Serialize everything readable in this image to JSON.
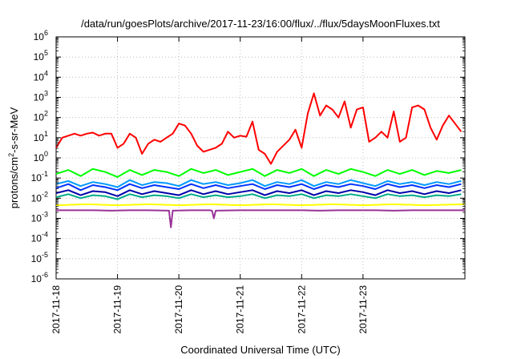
{
  "chart_data": {
    "type": "line",
    "title": "/data/run/goesPlots/archive/2017-11-23/16:00/flux/../flux/5daysMoonFluxes.txt",
    "xlabel": "Coordinated Universal Time (UTC)",
    "ylabel": {
      "base": "protons/cm",
      "sup": "2",
      "rest": "-s-sr-MeV"
    },
    "yscale": "log",
    "ylim": [
      -6,
      6
    ],
    "xlim": [
      0,
      6.66
    ],
    "grid": true,
    "legend": "none",
    "x_ticks": [
      {
        "x": 0,
        "label": "2017-11-18"
      },
      {
        "x": 1,
        "label": "2017-11-19"
      },
      {
        "x": 2,
        "label": "2017-11-20"
      },
      {
        "x": 3,
        "label": "2017-11-21"
      },
      {
        "x": 4,
        "label": "2017-11-22"
      },
      {
        "x": 5,
        "label": "2017-11-23"
      }
    ],
    "y_ticks": [
      {
        "exp": -6,
        "label_base": "10",
        "label_exp": "-6"
      },
      {
        "exp": -5,
        "label_base": "10",
        "label_exp": "-5"
      },
      {
        "exp": -4,
        "label_base": "10",
        "label_exp": "-4"
      },
      {
        "exp": -3,
        "label_base": "10",
        "label_exp": "-3"
      },
      {
        "exp": -2,
        "label_base": "10",
        "label_exp": "-2"
      },
      {
        "exp": -1,
        "label_base": "10",
        "label_exp": "-1"
      },
      {
        "exp": 0,
        "label_base": "10",
        "label_exp": "0"
      },
      {
        "exp": 1,
        "label_base": "10",
        "label_exp": "1"
      },
      {
        "exp": 2,
        "label_base": "10",
        "label_exp": "2"
      },
      {
        "exp": 3,
        "label_base": "10",
        "label_exp": "3"
      },
      {
        "exp": 4,
        "label_base": "10",
        "label_exp": "4"
      },
      {
        "exp": 5,
        "label_base": "10",
        "label_exp": "5"
      },
      {
        "exp": 6,
        "label_base": "10",
        "label_exp": "6"
      }
    ],
    "series": [
      {
        "color": "#ff0000",
        "x": [
          0,
          0.1,
          0.2,
          0.3,
          0.4,
          0.5,
          0.6,
          0.7,
          0.8,
          0.9,
          1.0,
          1.1,
          1.2,
          1.3,
          1.4,
          1.5,
          1.6,
          1.7,
          1.8,
          1.9,
          2.0,
          2.1,
          2.2,
          2.3,
          2.4,
          2.5,
          2.6,
          2.7,
          2.8,
          2.9,
          3.0,
          3.1,
          3.2,
          3.3,
          3.4,
          3.5,
          3.6,
          3.7,
          3.8,
          3.9,
          4.0,
          4.1,
          4.2,
          4.3,
          4.4,
          4.5,
          4.6,
          4.7,
          4.8,
          4.9,
          5.0,
          5.1,
          5.2,
          5.3,
          5.4,
          5.5,
          5.6,
          5.7,
          5.8,
          5.9,
          6.0,
          6.1,
          6.2,
          6.3,
          6.4,
          6.5,
          6.6
        ],
        "y": [
          0.5,
          1.0,
          1.1,
          1.2,
          1.1,
          1.2,
          1.25,
          1.1,
          1.2,
          1.2,
          0.5,
          0.7,
          1.2,
          1.0,
          0.2,
          0.7,
          0.9,
          0.8,
          1.0,
          1.2,
          1.7,
          1.6,
          1.2,
          0.6,
          0.3,
          0.4,
          0.5,
          0.7,
          1.3,
          1.0,
          1.1,
          1.05,
          1.8,
          0.4,
          0.2,
          -0.3,
          0.3,
          0.6,
          0.9,
          1.4,
          0.5,
          2.2,
          3.2,
          2.1,
          2.6,
          2.4,
          2.0,
          2.8,
          1.5,
          2.4,
          2.5,
          0.8,
          1.0,
          1.3,
          1.0,
          2.3,
          0.8,
          1.0,
          2.5,
          2.6,
          2.4,
          1.5,
          0.9,
          1.6,
          2.1,
          1.7,
          1.3
        ]
      },
      {
        "color": "#00ff00",
        "x": [
          0,
          0.2,
          0.4,
          0.6,
          0.8,
          1.0,
          1.2,
          1.4,
          1.6,
          1.8,
          2.0,
          2.2,
          2.4,
          2.6,
          2.8,
          3.0,
          3.2,
          3.4,
          3.6,
          3.8,
          4.0,
          4.2,
          4.4,
          4.6,
          4.8,
          5.0,
          5.2,
          5.4,
          5.6,
          5.8,
          6.0,
          6.2,
          6.4,
          6.6
        ],
        "y": [
          -0.8,
          -0.6,
          -0.9,
          -0.55,
          -0.7,
          -0.95,
          -0.6,
          -0.85,
          -0.6,
          -0.7,
          -0.9,
          -0.55,
          -0.75,
          -0.6,
          -0.85,
          -0.7,
          -0.55,
          -0.9,
          -0.6,
          -0.75,
          -0.55,
          -0.9,
          -0.6,
          -0.8,
          -0.55,
          -0.7,
          -0.9,
          -0.6,
          -0.8,
          -0.6,
          -0.85,
          -0.65,
          -0.75,
          -0.6
        ]
      },
      {
        "color": "#0099ff",
        "x": [
          0,
          0.2,
          0.4,
          0.6,
          0.8,
          1.0,
          1.2,
          1.4,
          1.6,
          1.8,
          2.0,
          2.2,
          2.4,
          2.6,
          2.8,
          3.0,
          3.2,
          3.4,
          3.6,
          3.8,
          4.0,
          4.2,
          4.4,
          4.6,
          4.8,
          5.0,
          5.2,
          5.4,
          5.6,
          5.8,
          6.0,
          6.2,
          6.4,
          6.6
        ],
        "y": [
          -1.3,
          -1.15,
          -1.4,
          -1.2,
          -1.3,
          -1.45,
          -1.1,
          -1.35,
          -1.2,
          -1.25,
          -1.4,
          -1.1,
          -1.3,
          -1.2,
          -1.35,
          -1.25,
          -1.1,
          -1.4,
          -1.2,
          -1.3,
          -1.1,
          -1.4,
          -1.2,
          -1.3,
          -1.1,
          -1.25,
          -1.4,
          -1.15,
          -1.3,
          -1.2,
          -1.35,
          -1.2,
          -1.3,
          -1.15
        ]
      },
      {
        "color": "#0033ff",
        "x": [
          0,
          0.2,
          0.4,
          0.6,
          0.8,
          1.0,
          1.2,
          1.4,
          1.6,
          1.8,
          2.0,
          2.2,
          2.4,
          2.6,
          2.8,
          3.0,
          3.2,
          3.4,
          3.6,
          3.8,
          4.0,
          4.2,
          4.4,
          4.6,
          4.8,
          5.0,
          5.2,
          5.4,
          5.6,
          5.8,
          6.0,
          6.2,
          6.4,
          6.6
        ],
        "y": [
          -1.5,
          -1.3,
          -1.6,
          -1.35,
          -1.45,
          -1.6,
          -1.3,
          -1.5,
          -1.35,
          -1.45,
          -1.55,
          -1.3,
          -1.5,
          -1.35,
          -1.5,
          -1.4,
          -1.3,
          -1.55,
          -1.35,
          -1.45,
          -1.3,
          -1.55,
          -1.35,
          -1.45,
          -1.3,
          -1.4,
          -1.55,
          -1.3,
          -1.45,
          -1.35,
          -1.5,
          -1.35,
          -1.45,
          -1.3
        ]
      },
      {
        "color": "#0000aa",
        "x": [
          0,
          0.2,
          0.4,
          0.6,
          0.8,
          1.0,
          1.2,
          1.4,
          1.6,
          1.8,
          2.0,
          2.2,
          2.4,
          2.6,
          2.8,
          3.0,
          3.2,
          3.4,
          3.6,
          3.8,
          4.0,
          4.2,
          4.4,
          4.6,
          4.8,
          5.0,
          5.2,
          5.4,
          5.6,
          5.8,
          6.0,
          6.2,
          6.4,
          6.6
        ],
        "y": [
          -1.75,
          -1.6,
          -1.85,
          -1.65,
          -1.7,
          -1.9,
          -1.6,
          -1.8,
          -1.65,
          -1.75,
          -1.85,
          -1.6,
          -1.8,
          -1.65,
          -1.8,
          -1.7,
          -1.6,
          -1.85,
          -1.65,
          -1.75,
          -1.6,
          -1.85,
          -1.65,
          -1.75,
          -1.6,
          -1.7,
          -1.85,
          -1.6,
          -1.75,
          -1.65,
          -1.8,
          -1.65,
          -1.75,
          -1.6
        ]
      },
      {
        "color": "#00aa88",
        "x": [
          0,
          0.2,
          0.4,
          0.6,
          0.8,
          1.0,
          1.2,
          1.4,
          1.6,
          1.8,
          2.0,
          2.2,
          2.4,
          2.6,
          2.8,
          3.0,
          3.2,
          3.4,
          3.6,
          3.8,
          4.0,
          4.2,
          4.4,
          4.6,
          4.8,
          5.0,
          5.2,
          5.4,
          5.6,
          5.8,
          6.0,
          6.2,
          6.4,
          6.6
        ],
        "y": [
          -1.95,
          -1.8,
          -2.0,
          -1.85,
          -1.9,
          -2.05,
          -1.8,
          -1.95,
          -1.85,
          -1.9,
          -2.0,
          -1.8,
          -1.95,
          -1.85,
          -1.95,
          -1.9,
          -1.8,
          -2.0,
          -1.85,
          -1.9,
          -1.8,
          -2.0,
          -1.85,
          -1.9,
          -1.8,
          -1.9,
          -2.0,
          -1.8,
          -1.9,
          -1.85,
          -1.95,
          -1.85,
          -1.9,
          -1.8
        ]
      },
      {
        "color": "#ffff00",
        "x": [
          0,
          0.5,
          1.0,
          1.5,
          2.0,
          2.5,
          3.0,
          3.5,
          4.0,
          4.5,
          5.0,
          5.5,
          6.0,
          6.66
        ],
        "y": [
          -2.35,
          -2.3,
          -2.35,
          -2.3,
          -2.35,
          -2.3,
          -2.35,
          -2.3,
          -2.35,
          -2.3,
          -2.35,
          -2.3,
          -2.35,
          -2.3
        ]
      },
      {
        "color": "#993399",
        "x": [
          0,
          0.3,
          0.6,
          0.9,
          1.2,
          1.5,
          1.84,
          1.87,
          1.9,
          2.2,
          2.5,
          2.54,
          2.57,
          2.6,
          3.0,
          3.3,
          3.6,
          4.0,
          4.3,
          4.6,
          4.7,
          4.9,
          5.2,
          5.5,
          5.8,
          6.1,
          6.4,
          6.66
        ],
        "y": [
          -2.6,
          -2.6,
          -2.6,
          -2.62,
          -2.6,
          -2.6,
          -2.62,
          -3.45,
          -2.62,
          -2.6,
          -2.6,
          -2.62,
          -3.0,
          -2.62,
          -2.6,
          -2.6,
          -2.6,
          -2.6,
          -2.62,
          -2.6,
          -2.6,
          -2.6,
          -2.6,
          -2.62,
          -2.6,
          -2.6,
          -2.6,
          -2.6
        ]
      }
    ]
  }
}
